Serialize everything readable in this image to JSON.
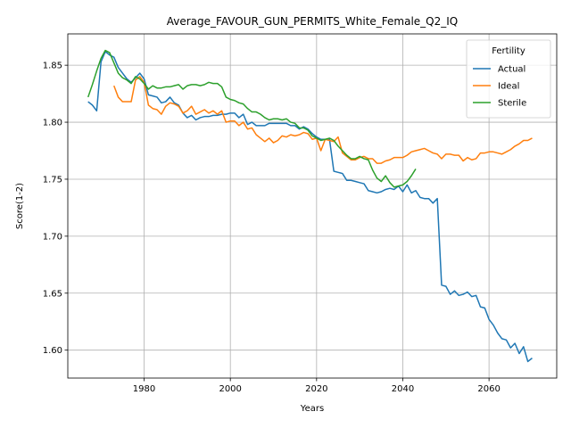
{
  "chart_data": {
    "type": "line",
    "title": "Average_FAVOUR_GUN_PERMITS_White_Female_Q2_IQ",
    "xlabel": "Years",
    "ylabel": "Score(1-2)",
    "xlim": [
      1962.3,
      2075.7
    ],
    "ylim": [
      1.5755,
      1.8775
    ],
    "x_ticks": [
      1980,
      2000,
      2020,
      2040,
      2060
    ],
    "x_tick_labels": [
      "1980",
      "2000",
      "2020",
      "2040",
      "2060"
    ],
    "y_ticks": [
      1.6,
      1.65,
      1.7,
      1.75,
      1.8,
      1.85
    ],
    "y_tick_labels": [
      "1.60",
      "1.65",
      "1.70",
      "1.75",
      "1.80",
      "1.85"
    ],
    "grid": true,
    "legend": {
      "title": "Fertility",
      "position": "top-right"
    },
    "series": [
      {
        "name": "Actual",
        "color": "#1f77b4",
        "x": [
          1967,
          1968,
          1969,
          1970,
          1971,
          1972,
          1973,
          1974,
          1975,
          1976,
          1977,
          1978,
          1979,
          1980,
          1981,
          1982,
          1983,
          1984,
          1985,
          1986,
          1987,
          1988,
          1989,
          1990,
          1991,
          1992,
          1993,
          1994,
          1995,
          1996,
          1997,
          1998,
          1999,
          2000,
          2001,
          2002,
          2003,
          2004,
          2005,
          2006,
          2007,
          2008,
          2009,
          2010,
          2011,
          2012,
          2013,
          2014,
          2015,
          2016,
          2017,
          2018,
          2019,
          2020,
          2021,
          2022,
          2023,
          2024,
          2025,
          2026,
          2027,
          2028,
          2029,
          2030,
          2031,
          2032,
          2033,
          2034,
          2035,
          2036,
          2037,
          2038,
          2039,
          2040,
          2041,
          2042,
          2043,
          2044,
          2045,
          2046,
          2047,
          2048,
          2049,
          2050,
          2051,
          2052,
          2053,
          2054,
          2055,
          2056,
          2057,
          2058,
          2059,
          2060,
          2061,
          2062,
          2063,
          2064,
          2065,
          2066,
          2067,
          2068,
          2069,
          2070
        ],
        "y": [
          1.818,
          1.815,
          1.81,
          1.853,
          1.862,
          1.859,
          1.857,
          1.848,
          1.843,
          1.838,
          1.835,
          1.839,
          1.843,
          1.838,
          1.824,
          1.823,
          1.822,
          1.817,
          1.818,
          1.822,
          1.817,
          1.815,
          1.808,
          1.804,
          1.806,
          1.802,
          1.804,
          1.805,
          1.805,
          1.806,
          1.806,
          1.807,
          1.807,
          1.808,
          1.808,
          1.804,
          1.807,
          1.798,
          1.8,
          1.797,
          1.797,
          1.797,
          1.799,
          1.799,
          1.799,
          1.799,
          1.799,
          1.797,
          1.797,
          1.794,
          1.796,
          1.794,
          1.79,
          1.787,
          1.785,
          1.785,
          1.785,
          1.757,
          1.756,
          1.755,
          1.749,
          1.749,
          1.748,
          1.747,
          1.746,
          1.74,
          1.739,
          1.738,
          1.739,
          1.741,
          1.742,
          1.741,
          1.744,
          1.739,
          1.745,
          1.738,
          1.74,
          1.734,
          1.733,
          1.733,
          1.729,
          1.733,
          1.657,
          1.656,
          1.649,
          1.652,
          1.648,
          1.649,
          1.651,
          1.647,
          1.648,
          1.638,
          1.637,
          1.627,
          1.622,
          1.615,
          1.61,
          1.609,
          1.602,
          1.606,
          1.597,
          1.603,
          1.59,
          1.593
        ]
      },
      {
        "name": "Ideal",
        "color": "#ff7f0e",
        "x": [
          1973,
          1974,
          1975,
          1976,
          1977,
          1978,
          1979,
          1980,
          1981,
          1982,
          1983,
          1984,
          1985,
          1986,
          1987,
          1988,
          1989,
          1990,
          1991,
          1992,
          1993,
          1994,
          1995,
          1996,
          1997,
          1998,
          1999,
          2000,
          2001,
          2002,
          2003,
          2004,
          2005,
          2006,
          2007,
          2008,
          2009,
          2010,
          2011,
          2012,
          2013,
          2014,
          2015,
          2016,
          2017,
          2018,
          2019,
          2020,
          2021,
          2022,
          2023,
          2024,
          2025,
          2026,
          2027,
          2028,
          2029,
          2030,
          2031,
          2032,
          2033,
          2034,
          2035,
          2036,
          2037,
          2038,
          2039,
          2040,
          2041,
          2042,
          2043,
          2044,
          2045,
          2046,
          2047,
          2048,
          2049,
          2050,
          2051,
          2052,
          2053,
          2054,
          2055,
          2056,
          2057,
          2058,
          2059,
          2060,
          2061,
          2062,
          2063,
          2064,
          2065,
          2066,
          2067,
          2068,
          2069,
          2070
        ],
        "y": [
          1.832,
          1.822,
          1.818,
          1.818,
          1.818,
          1.837,
          1.84,
          1.835,
          1.815,
          1.812,
          1.811,
          1.807,
          1.814,
          1.817,
          1.816,
          1.814,
          1.808,
          1.81,
          1.814,
          1.807,
          1.809,
          1.811,
          1.808,
          1.81,
          1.807,
          1.81,
          1.8,
          1.801,
          1.801,
          1.797,
          1.8,
          1.794,
          1.795,
          1.789,
          1.786,
          1.783,
          1.786,
          1.782,
          1.784,
          1.788,
          1.787,
          1.789,
          1.788,
          1.789,
          1.791,
          1.79,
          1.785,
          1.786,
          1.775,
          1.785,
          1.784,
          1.783,
          1.787,
          1.773,
          1.77,
          1.767,
          1.767,
          1.769,
          1.77,
          1.768,
          1.768,
          1.764,
          1.764,
          1.766,
          1.767,
          1.769,
          1.769,
          1.769,
          1.771,
          1.774,
          1.775,
          1.776,
          1.777,
          1.775,
          1.773,
          1.772,
          1.768,
          1.772,
          1.772,
          1.771,
          1.771,
          1.766,
          1.769,
          1.767,
          1.768,
          1.773,
          1.773,
          1.774,
          1.774,
          1.773,
          1.772,
          1.774,
          1.776,
          1.779,
          1.781,
          1.784,
          1.784,
          1.786
        ]
      },
      {
        "name": "Sterile",
        "color": "#2ca02c",
        "x": [
          1967,
          1968,
          1969,
          1970,
          1971,
          1972,
          1973,
          1974,
          1975,
          1976,
          1977,
          1978,
          1979,
          1980,
          1981,
          1982,
          1983,
          1984,
          1985,
          1986,
          1987,
          1988,
          1989,
          1990,
          1991,
          1992,
          1993,
          1994,
          1995,
          1996,
          1997,
          1998,
          1999,
          2000,
          2001,
          2002,
          2003,
          2004,
          2005,
          2006,
          2007,
          2008,
          2009,
          2010,
          2011,
          2012,
          2013,
          2014,
          2015,
          2016,
          2017,
          2018,
          2019,
          2020,
          2021,
          2022,
          2023,
          2024,
          2025,
          2026,
          2027,
          2028,
          2029,
          2030,
          2031,
          2032,
          2033,
          2034,
          2035,
          2036,
          2037,
          2038,
          2039,
          2040,
          2041,
          2042,
          2043
        ],
        "y": [
          1.822,
          1.833,
          1.845,
          1.856,
          1.863,
          1.861,
          1.852,
          1.843,
          1.839,
          1.837,
          1.834,
          1.84,
          1.838,
          1.834,
          1.829,
          1.832,
          1.83,
          1.83,
          1.831,
          1.831,
          1.832,
          1.833,
          1.829,
          1.832,
          1.833,
          1.833,
          1.832,
          1.833,
          1.835,
          1.834,
          1.834,
          1.831,
          1.822,
          1.82,
          1.819,
          1.817,
          1.816,
          1.812,
          1.809,
          1.809,
          1.807,
          1.804,
          1.802,
          1.803,
          1.803,
          1.802,
          1.803,
          1.8,
          1.799,
          1.795,
          1.795,
          1.793,
          1.788,
          1.786,
          1.784,
          1.785,
          1.786,
          1.784,
          1.779,
          1.775,
          1.771,
          1.768,
          1.768,
          1.77,
          1.768,
          1.767,
          1.758,
          1.751,
          1.748,
          1.753,
          1.747,
          1.743,
          1.744,
          1.745,
          1.748,
          1.753,
          1.759
        ]
      }
    ]
  }
}
